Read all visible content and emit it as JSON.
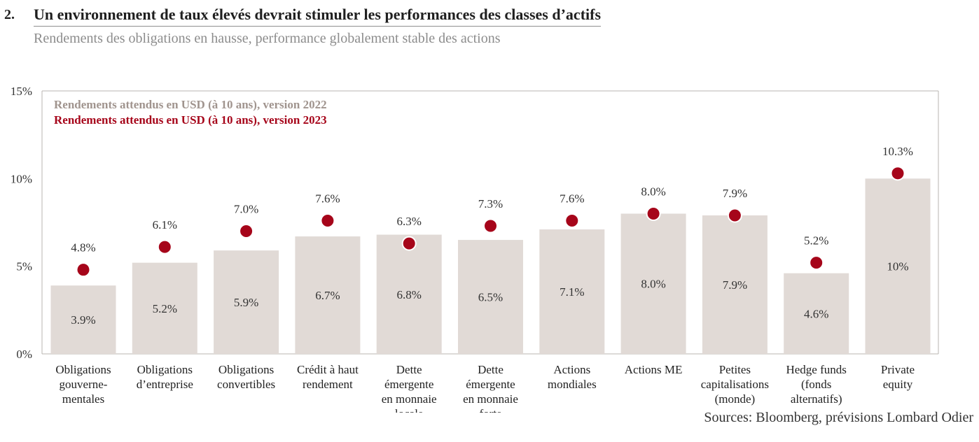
{
  "header": {
    "number": "2.",
    "title": "Un environnement de taux élevés devrait stimuler les performances des classes d’actifs",
    "subtitle": "Rendements des obligations en hausse, performance globalement stable des actions"
  },
  "sources": "Sources: Bloomberg, prévisions Lombard Odier",
  "colors": {
    "bar_2022": "#e1dad6",
    "dot_2023": "#a6051a",
    "legend_2022_text": "#a0948e",
    "legend_2023_text": "#a6051a",
    "axis": "#b9b4b1"
  },
  "chart_data": {
    "type": "bar",
    "title": "",
    "xlabel": "",
    "ylabel": "",
    "ylim": [
      0,
      15
    ],
    "yticks": [
      0,
      5,
      10,
      15
    ],
    "ytick_labels": [
      "0%",
      "5%",
      "10%",
      "15%"
    ],
    "grid": false,
    "legend_position": "top-left",
    "categories": [
      [
        "Obligations",
        "gouverne-",
        "mentales"
      ],
      [
        "Obligations",
        "d’entreprise"
      ],
      [
        "Obligations",
        "convertibles"
      ],
      [
        "Crédit à haut",
        "rendement"
      ],
      [
        "Dette",
        "émergente",
        "en monnaie",
        "locale"
      ],
      [
        "Dette",
        "émergente",
        "en monnaie",
        "forte"
      ],
      [
        "Actions",
        "mondiales"
      ],
      [
        "Actions ME"
      ],
      [
        "Petites",
        "capitalisations",
        "(monde)"
      ],
      [
        "Hedge funds",
        "(fonds",
        "alternatifs)"
      ],
      [
        "Private",
        "equity"
      ]
    ],
    "series": [
      {
        "name": "Rendements attendus en USD (à 10 ans), version 2022",
        "kind": "bar",
        "values": [
          3.9,
          5.2,
          5.9,
          6.7,
          6.8,
          6.5,
          7.1,
          8.0,
          7.9,
          4.6,
          10.0
        ],
        "labels": [
          "3.9%",
          "5.2%",
          "5.9%",
          "6.7%",
          "6.8%",
          "6.5%",
          "7.1%",
          "8.0%",
          "7.9%",
          "4.6%",
          "10%"
        ]
      },
      {
        "name": "Rendements attendus en USD (à 10 ans), version 2023",
        "kind": "dot",
        "values": [
          4.8,
          6.1,
          7.0,
          7.6,
          6.3,
          7.3,
          7.6,
          8.0,
          7.9,
          5.2,
          10.3
        ],
        "labels": [
          "4.8%",
          "6.1%",
          "7.0%",
          "7.6%",
          "6.3%",
          "7.3%",
          "7.6%",
          "8.0%",
          "7.9%",
          "5.2%",
          "10.3%"
        ]
      }
    ]
  }
}
